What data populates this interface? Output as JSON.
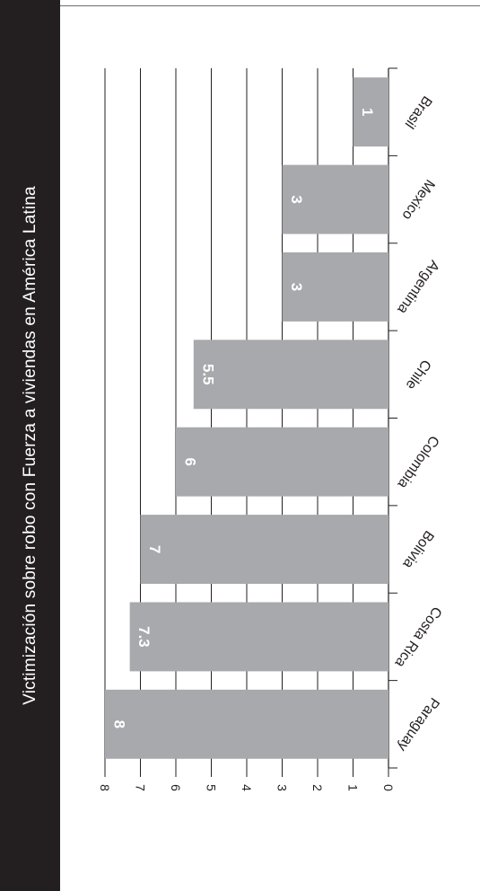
{
  "chart_data": {
    "type": "bar",
    "orientation": "horizontal",
    "title": "Victimización sobre robo con Fuerza a viviendas en América Latina",
    "categories": [
      "Brasil",
      "Mexico",
      "Argentina",
      "Chile",
      "Colombia",
      "Bolivia",
      "Costa Rica",
      "Paraguay"
    ],
    "values": [
      1,
      3,
      3,
      5.5,
      6,
      7,
      7.3,
      8
    ],
    "value_labels": [
      "1",
      "3",
      "3",
      "5.5",
      "6",
      "7",
      "7.3",
      "8"
    ],
    "xlim": [
      0,
      8
    ],
    "ticks": [
      "0",
      "1",
      "2",
      "3",
      "4",
      "5",
      "6",
      "7",
      "8"
    ],
    "grid": true,
    "colors": {
      "bar": "#a7a9ac",
      "grid": "#231f20",
      "title_band": "#231f20",
      "title_text": "#ffffff",
      "bar_label": "#ffffff"
    }
  }
}
